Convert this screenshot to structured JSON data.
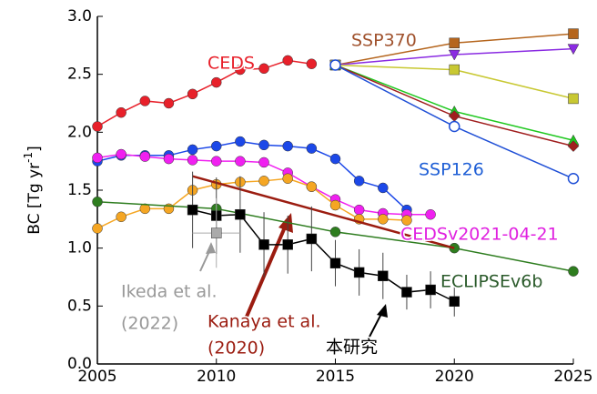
{
  "chart_data": {
    "type": "line",
    "xlim": [
      2005,
      2025
    ],
    "ylim": [
      0,
      3
    ],
    "xticks": [
      2005,
      2010,
      2015,
      2020,
      2025
    ],
    "yticks": [
      {
        "value": 0,
        "label": "0.0"
      },
      {
        "value": 0.5,
        "label": "0.5"
      },
      {
        "value": 1,
        "label": "1.0"
      },
      {
        "value": 1.5,
        "label": "1.5"
      },
      {
        "value": 2,
        "label": "2.0"
      },
      {
        "value": 2.5,
        "label": "2.5"
      },
      {
        "value": 3,
        "label": "3.0"
      }
    ],
    "ylabel_parts": [
      "BC [Tg yr",
      "-1",
      "]"
    ],
    "series": [
      {
        "color": "#e8202a",
        "marker": "circle",
        "x": [
          2005,
          2006,
          2007,
          2008,
          2009,
          2010,
          2011,
          2012,
          2013,
          2014
        ],
        "values": [
          2.05,
          2.17,
          2.27,
          2.25,
          2.33,
          2.43,
          2.54,
          2.55,
          2.62,
          2.59
        ]
      },
      {
        "color": "#1c48e8",
        "marker": "circle",
        "x": [
          2005,
          2006,
          2007,
          2008,
          2009,
          2010,
          2011,
          2012,
          2013,
          2014,
          2015,
          2016,
          2017,
          2018
        ],
        "values": [
          1.75,
          1.8,
          1.8,
          1.8,
          1.85,
          1.88,
          1.92,
          1.89,
          1.88,
          1.86,
          1.77,
          1.58,
          1.52,
          1.33
        ]
      },
      {
        "color": "#f020f0",
        "marker": "circle",
        "x": [
          2005,
          2006,
          2007,
          2008,
          2009,
          2010,
          2011,
          2012,
          2013,
          2014,
          2015,
          2016,
          2017,
          2018,
          2019
        ],
        "values": [
          1.78,
          1.81,
          1.79,
          1.77,
          1.76,
          1.75,
          1.75,
          1.74,
          1.65,
          1.53,
          1.42,
          1.33,
          1.3,
          1.29,
          1.29
        ]
      },
      {
        "color": "#f5a623",
        "marker": "circle",
        "x": [
          2005,
          2006,
          2007,
          2008,
          2009,
          2010,
          2011,
          2012,
          2013,
          2014,
          2015,
          2016,
          2017,
          2018
        ],
        "values": [
          1.17,
          1.27,
          1.34,
          1.34,
          1.5,
          1.55,
          1.57,
          1.58,
          1.6,
          1.53,
          1.37,
          1.25,
          1.25,
          1.24
        ]
      },
      {
        "color": "#2e7d1f",
        "marker": "circle",
        "x": [
          2005,
          2010,
          2015,
          2020,
          2025
        ],
        "values": [
          1.4,
          1.34,
          1.14,
          1.0,
          0.8
        ]
      },
      {
        "color": "#9b1c10",
        "marker": "none",
        "x": [
          2009,
          2020
        ],
        "values": [
          1.62,
          1.0
        ]
      },
      {
        "color": "#000000",
        "marker": "square",
        "x": [
          2009,
          2010,
          2011,
          2012,
          2013,
          2014,
          2015,
          2016,
          2017,
          2018,
          2019,
          2020
        ],
        "values": [
          1.33,
          1.28,
          1.29,
          1.03,
          1.03,
          1.08,
          0.87,
          0.79,
          0.76,
          0.62,
          0.64,
          0.54
        ],
        "errors": [
          0.33,
          0.33,
          0.33,
          0.28,
          0.25,
          0.28,
          0.2,
          0.2,
          0.2,
          0.15,
          0.16,
          0.13
        ]
      },
      {
        "color": "#aaaaaa",
        "marker": "square",
        "x": [
          2010
        ],
        "values": [
          1.13
        ],
        "errors": [
          0.3
        ],
        "xerrors": [
          1
        ]
      },
      {
        "color": "#b5651d",
        "marker": "square",
        "x": [
          2015,
          2020,
          2025
        ],
        "values": [
          2.58,
          2.77,
          2.85
        ]
      },
      {
        "color": "#8a2be2",
        "marker": "triangle-down",
        "x": [
          2015,
          2020,
          2025
        ],
        "values": [
          2.58,
          2.67,
          2.72
        ]
      },
      {
        "color": "#c8c832",
        "marker": "square",
        "x": [
          2015,
          2020,
          2025
        ],
        "values": [
          2.58,
          2.54,
          2.29
        ]
      },
      {
        "color": "#1fc81f",
        "marker": "triangle-up",
        "x": [
          2015,
          2020,
          2025
        ],
        "values": [
          2.58,
          2.18,
          1.93
        ]
      },
      {
        "color": "#a01e1e",
        "marker": "diamond",
        "x": [
          2015,
          2020,
          2025
        ],
        "values": [
          2.58,
          2.14,
          1.88
        ]
      },
      {
        "color": "#1f4fd6",
        "marker": "open-circle",
        "x": [
          2015,
          2020,
          2025
        ],
        "values": [
          2.58,
          2.05,
          1.6
        ]
      }
    ],
    "annotations": [
      {
        "text": "CEDS",
        "color": "#e8202a"
      },
      {
        "text": "SSP370",
        "color": "#a0522d"
      },
      {
        "text": "SSP126",
        "color": "#1f5fd6"
      },
      {
        "text": "CEDSv2021-04-21",
        "color": "#e020e0"
      },
      {
        "text": "ECLIPSEv6b",
        "color": "#2a5a2a"
      },
      {
        "text": "Ikeda et al.",
        "color": "#999999"
      },
      {
        "text": "(2022)",
        "color": "#999999"
      },
      {
        "text": "Kanaya et al.",
        "color": "#9b1c10"
      },
      {
        "text": "(2020)",
        "color": "#9b1c10"
      },
      {
        "text": "本研究",
        "color": "#000000"
      }
    ]
  }
}
